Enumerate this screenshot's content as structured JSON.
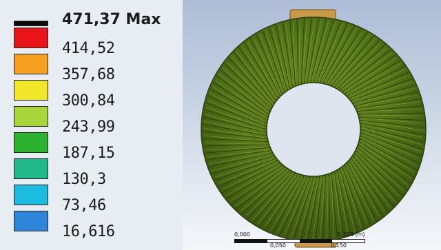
{
  "legend": {
    "max_label": "471,37 Max",
    "entries": [
      {
        "label": "414,52",
        "color": "#e8141a"
      },
      {
        "label": "357,68",
        "color": "#f6a020"
      },
      {
        "label": "300,84",
        "color": "#f2e62a"
      },
      {
        "label": "243,99",
        "color": "#a8d63a"
      },
      {
        "label": "187,15",
        "color": "#2db230"
      },
      {
        "label": "130,3",
        "color": "#22b98a"
      },
      {
        "label": "73,46",
        "color": "#1cbce0"
      },
      {
        "label": "16,616",
        "color": "#2f86d8"
      }
    ],
    "top_color": "#0a0a0a"
  },
  "scale": {
    "left_label": "0,000",
    "right_label": "0,200 (m)",
    "mid_left_label": "0,050",
    "mid_right_label": "0,150"
  },
  "colors": {
    "coil": "#5a8a1a",
    "coil_dark": "#2e3e10",
    "housing": "#c89a48"
  }
}
